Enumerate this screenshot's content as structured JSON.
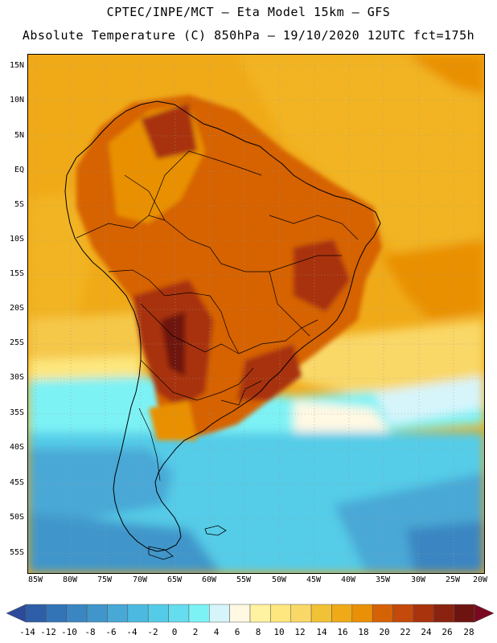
{
  "header": {
    "line1": "CPTEC/INPE/MCT –  Eta Model 15km – GFS",
    "line2": "Absolute Temperature (C) 850hPa – 19/10/2020 12UTC fct=175h"
  },
  "map": {
    "lat_labels": [
      "15N",
      "10N",
      "5N",
      "EQ",
      "5S",
      "10S",
      "15S",
      "20S",
      "25S",
      "30S",
      "35S",
      "40S",
      "45S",
      "50S",
      "55S"
    ],
    "lon_labels": [
      "85W",
      "80W",
      "75W",
      "70W",
      "65W",
      "60W",
      "55W",
      "50W",
      "45W",
      "40W",
      "35W",
      "30W",
      "25W",
      "20W"
    ]
  },
  "colorbar": {
    "labels": [
      "-14",
      "-12",
      "-10",
      "-8",
      "-6",
      "-4",
      "-2",
      "0",
      "2",
      "4",
      "6",
      "8",
      "10",
      "12",
      "14",
      "16",
      "18",
      "20",
      "22",
      "24",
      "26",
      "28"
    ],
    "colors": [
      "#2c4a9a",
      "#2e5ea8",
      "#3274b6",
      "#3a86c2",
      "#4096ca",
      "#48a8d6",
      "#4cbae0",
      "#54cce8",
      "#66dcef",
      "#7df2f5",
      "#d6f5fb",
      "#fff8e3",
      "#fff2a0",
      "#fde77e",
      "#f9d867",
      "#f2c236",
      "#f0aa18",
      "#e99006",
      "#d66206",
      "#c34a0a",
      "#a8330c",
      "#8a220f",
      "#6e1410",
      "#7a0820"
    ]
  }
}
